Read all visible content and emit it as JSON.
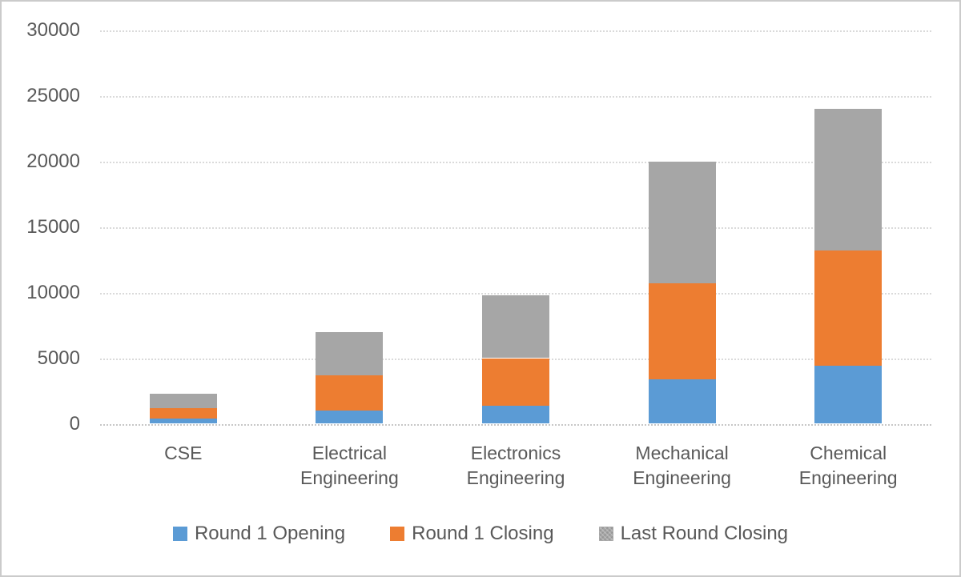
{
  "chart_data": {
    "type": "bar",
    "stacked": true,
    "title": "",
    "xlabel": "",
    "ylabel": "",
    "categories": [
      "CSE",
      "Electrical Engineering",
      "Electronics Engineering",
      "Mechanical Engineering",
      "Chemical Engineering"
    ],
    "series": [
      {
        "name": "Round 1 Opening",
        "color": "#5B9BD5",
        "pattern": false,
        "values": [
          400,
          1000,
          1400,
          3400,
          4400
        ]
      },
      {
        "name": "Round 1 Closing",
        "color": "#ED7D31",
        "pattern": false,
        "values": [
          800,
          2700,
          3600,
          7300,
          8800
        ]
      },
      {
        "name": "Last Round Closing",
        "color": "#A6A6A6",
        "pattern": true,
        "values": [
          1100,
          3300,
          4800,
          9300,
          10800
        ]
      }
    ],
    "stack_totals": [
      2300,
      7000,
      9800,
      20000,
      24000
    ],
    "ylim": [
      0,
      30000
    ],
    "ytick_step": 5000,
    "ytick_labels": [
      "0",
      "5000",
      "10000",
      "15000",
      "20000",
      "25000",
      "30000"
    ],
    "grid": true,
    "legend_position": "bottom",
    "colors": {
      "tick_text": "#595959",
      "gridline": "#dadada",
      "axis_line": "#c7c7c7",
      "frame_border": "#cbcbcb",
      "background": "#ffffff"
    }
  }
}
